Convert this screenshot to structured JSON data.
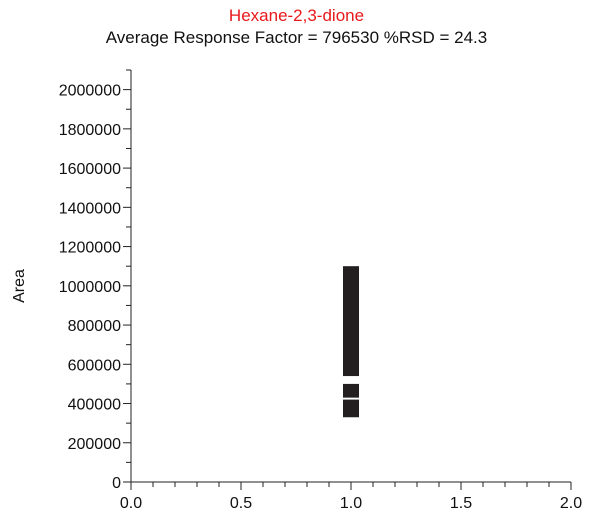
{
  "colors": {
    "title": "#e8191b",
    "text": "#111111",
    "axis": "#222222",
    "bar": "#231f20",
    "background": "#ffffff"
  },
  "chart_data": {
    "type": "scatter",
    "title": "Hexane-2,3-dione",
    "subtitle": "Average Response Factor = 796530   %RSD = 24.3",
    "xlabel": "",
    "ylabel": "Area",
    "xlim": [
      0.0,
      2.0
    ],
    "ylim": [
      0,
      2100000
    ],
    "x_ticks": [
      "0.0",
      "0.5",
      "1.0",
      "1.5",
      "2.0"
    ],
    "x_tick_values": [
      0.0,
      0.5,
      1.0,
      1.5,
      2.0
    ],
    "y_ticks": [
      "0",
      "200000",
      "400000",
      "600000",
      "800000",
      "1000000",
      "1200000",
      "1400000",
      "1600000",
      "1800000",
      "2000000"
    ],
    "y_tick_values": [
      0,
      200000,
      400000,
      600000,
      800000,
      1000000,
      1200000,
      1400000,
      1600000,
      1800000,
      2000000
    ],
    "x_minor_step": 0.1,
    "y_minor_step": 100000,
    "grid": false,
    "legend": "none",
    "series": [
      {
        "segments": [
          {
            "x": 1.0,
            "y_low": 330000,
            "y_high": 420000
          },
          {
            "x": 1.0,
            "y_low": 430000,
            "y_high": 500000
          },
          {
            "x": 1.0,
            "y_low": 540000,
            "y_high": 1100000
          }
        ]
      }
    ]
  }
}
